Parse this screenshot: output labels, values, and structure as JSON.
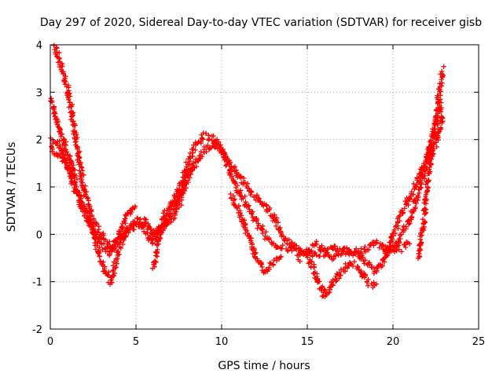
{
  "chart_data": {
    "type": "scatter",
    "title": "Day 297 of 2020, Sidereal Day-to-day VTEC variation (SDTVAR) for receiver gisb",
    "xlabel": "GPS time / hours",
    "ylabel": "SDTVAR / TECUs",
    "xlim": [
      0,
      25
    ],
    "ylim": [
      -2,
      4
    ],
    "xticks": [
      "0",
      "5",
      "10",
      "15",
      "20",
      "25"
    ],
    "yticks": [
      "-2",
      "-1",
      "0",
      "1",
      "2",
      "3",
      "4"
    ],
    "grid": true,
    "marker": "+",
    "series": [
      {
        "name": "SDTVAR",
        "color": "#ff0000",
        "tracks": [
          {
            "x": [
              0.0,
              0.5,
              1.0,
              1.5,
              2.0,
              2.5,
              3.0,
              3.5,
              4.0,
              4.5,
              5.0,
              5.5,
              6.0,
              6.5,
              7.0,
              7.5,
              8.0,
              8.5,
              9.0,
              9.5,
              10.0,
              10.5,
              11.0,
              11.5,
              12.0,
              12.5,
              13.0,
              13.5,
              14.0,
              14.5,
              15.0,
              15.5,
              16.0,
              16.5,
              17.0,
              17.5,
              18.0,
              18.5,
              19.0
            ],
            "y": [
              2.0,
              1.9,
              1.4,
              0.9,
              0.5,
              0.0,
              -0.6,
              -1.0,
              -0.3,
              0.1,
              0.3,
              0.1,
              -0.2,
              0.3,
              0.6,
              0.9,
              1.5,
              1.9,
              2.1,
              2.0,
              1.8,
              1.3,
              0.9,
              0.6,
              0.3,
              0.0,
              -0.2,
              -0.3,
              -0.3,
              -0.4,
              -0.4,
              -0.9,
              -1.3,
              -1.0,
              -0.8,
              -0.6,
              -0.7,
              -1.0,
              -1.1
            ]
          },
          {
            "x": [
              0.0,
              0.3,
              0.7,
              1.0,
              1.5,
              2.0,
              2.5,
              3.0,
              3.5,
              4.0,
              4.5,
              5.0,
              5.5,
              6.0,
              6.5,
              7.0,
              7.5,
              8.0,
              8.5,
              9.0,
              9.5,
              10.0,
              10.5,
              11.0,
              11.5,
              12.0,
              12.5,
              13.0,
              13.5,
              14.0,
              14.5,
              15.0,
              15.5,
              16.0,
              16.5,
              17.0,
              17.5,
              18.0,
              18.5,
              19.0,
              19.5,
              20.0,
              20.5,
              21.0
            ],
            "y": [
              1.8,
              1.7,
              1.6,
              1.5,
              1.0,
              0.5,
              0.1,
              -0.2,
              -0.4,
              -0.1,
              0.1,
              0.2,
              0.3,
              0.0,
              0.1,
              0.3,
              0.6,
              1.2,
              1.5,
              1.8,
              1.9,
              1.8,
              1.5,
              1.2,
              1.0,
              0.8,
              0.6,
              0.4,
              0.0,
              -0.2,
              -0.3,
              -0.4,
              -0.4,
              -0.4,
              -0.3,
              -0.3,
              -0.4,
              -0.4,
              -0.3,
              -0.2,
              -0.3,
              -0.3,
              -0.3,
              -0.2
            ]
          },
          {
            "x": [
              0.2,
              0.5,
              1.0,
              1.5,
              2.0,
              2.5,
              3.0,
              3.5,
              4.0,
              4.5,
              5.0
            ],
            "y": [
              4.0,
              3.7,
              3.1,
              2.0,
              0.9,
              0.3,
              0.0,
              -0.3,
              0.0,
              0.4,
              0.6
            ]
          },
          {
            "x": [
              0.0,
              0.3,
              0.6,
              1.0,
              1.5
            ],
            "y": [
              2.9,
              2.5,
              2.2,
              1.7,
              1.2
            ]
          },
          {
            "x": [
              10.5,
              11.0,
              11.5,
              12.0,
              12.5,
              13.0,
              13.5
            ],
            "y": [
              0.8,
              0.5,
              0.0,
              -0.5,
              -0.8,
              -0.6,
              -0.5
            ]
          },
          {
            "x": [
              14.5,
              15.0,
              15.5,
              16.0,
              16.5,
              17.0,
              17.5,
              18.0,
              18.5,
              19.0,
              19.5,
              20.0,
              20.5,
              21.0,
              21.5,
              22.0,
              22.5,
              22.8
            ],
            "y": [
              -0.5,
              -0.4,
              -0.2,
              -0.3,
              -0.5,
              -0.4,
              -0.3,
              -0.4,
              -0.6,
              -0.8,
              -0.5,
              0.0,
              0.4,
              0.8,
              1.2,
              1.6,
              2.2,
              2.8
            ]
          },
          {
            "x": [
              19.5,
              20.0,
              20.5,
              21.0,
              21.5,
              22.0,
              22.5,
              22.9
            ],
            "y": [
              -0.4,
              -0.3,
              0.0,
              0.3,
              0.9,
              1.6,
              2.4,
              3.5
            ]
          },
          {
            "x": [
              21.5,
              21.8,
              22.0,
              22.3,
              22.6,
              22.9
            ],
            "y": [
              -0.5,
              0.3,
              1.0,
              1.8,
              2.0,
              2.5
            ]
          },
          {
            "x": [
              6.0,
              6.3,
              6.6,
              7.0,
              7.5,
              8.0,
              8.5
            ],
            "y": [
              -0.7,
              -0.2,
              0.2,
              0.4,
              0.8,
              1.3,
              1.5
            ]
          }
        ]
      }
    ]
  }
}
